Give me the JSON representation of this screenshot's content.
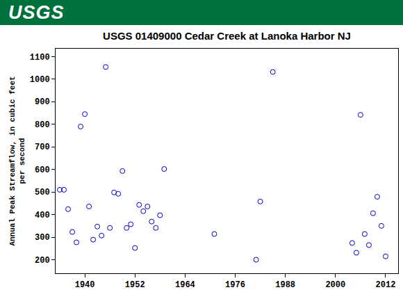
{
  "header": {
    "logo": "USGS"
  },
  "chart_data": {
    "type": "scatter",
    "title": "USGS 01409000 Cedar Creek at Lanoka Harbor NJ",
    "y_label": "Annual Peak Streamflow, in cubic feet\nper second",
    "x": [
      1934,
      1935,
      1936,
      1937,
      1938,
      1939,
      1940,
      1941,
      1942,
      1943,
      1944,
      1945,
      1946,
      1947,
      1948,
      1949,
      1950,
      1951,
      1952,
      1953,
      1954,
      1955,
      1956,
      1957,
      1958,
      1959,
      1971,
      1981,
      1982,
      1985,
      2004,
      2005,
      2006,
      2007,
      2008,
      2009,
      2010,
      2011,
      2012
    ],
    "values": [
      510,
      510,
      424,
      323,
      277,
      790,
      845,
      436,
      289,
      347,
      307,
      1054,
      341,
      498,
      492,
      593,
      341,
      357,
      252,
      443,
      415,
      436,
      369,
      341,
      397,
      602,
      314,
      200,
      458,
      1032,
      274,
      231,
      842,
      314,
      265,
      406,
      479,
      350,
      215
    ],
    "color": "#0000cc",
    "marker": "circle-open",
    "xlim": [
      1933,
      2015
    ],
    "xticks": [
      1940,
      1952,
      1964,
      1976,
      1988,
      2000,
      2012
    ],
    "ylim": [
      140,
      1135
    ],
    "yticks": [
      200,
      300,
      400,
      500,
      600,
      700,
      800,
      900,
      1000,
      1100
    ],
    "grid": false
  }
}
